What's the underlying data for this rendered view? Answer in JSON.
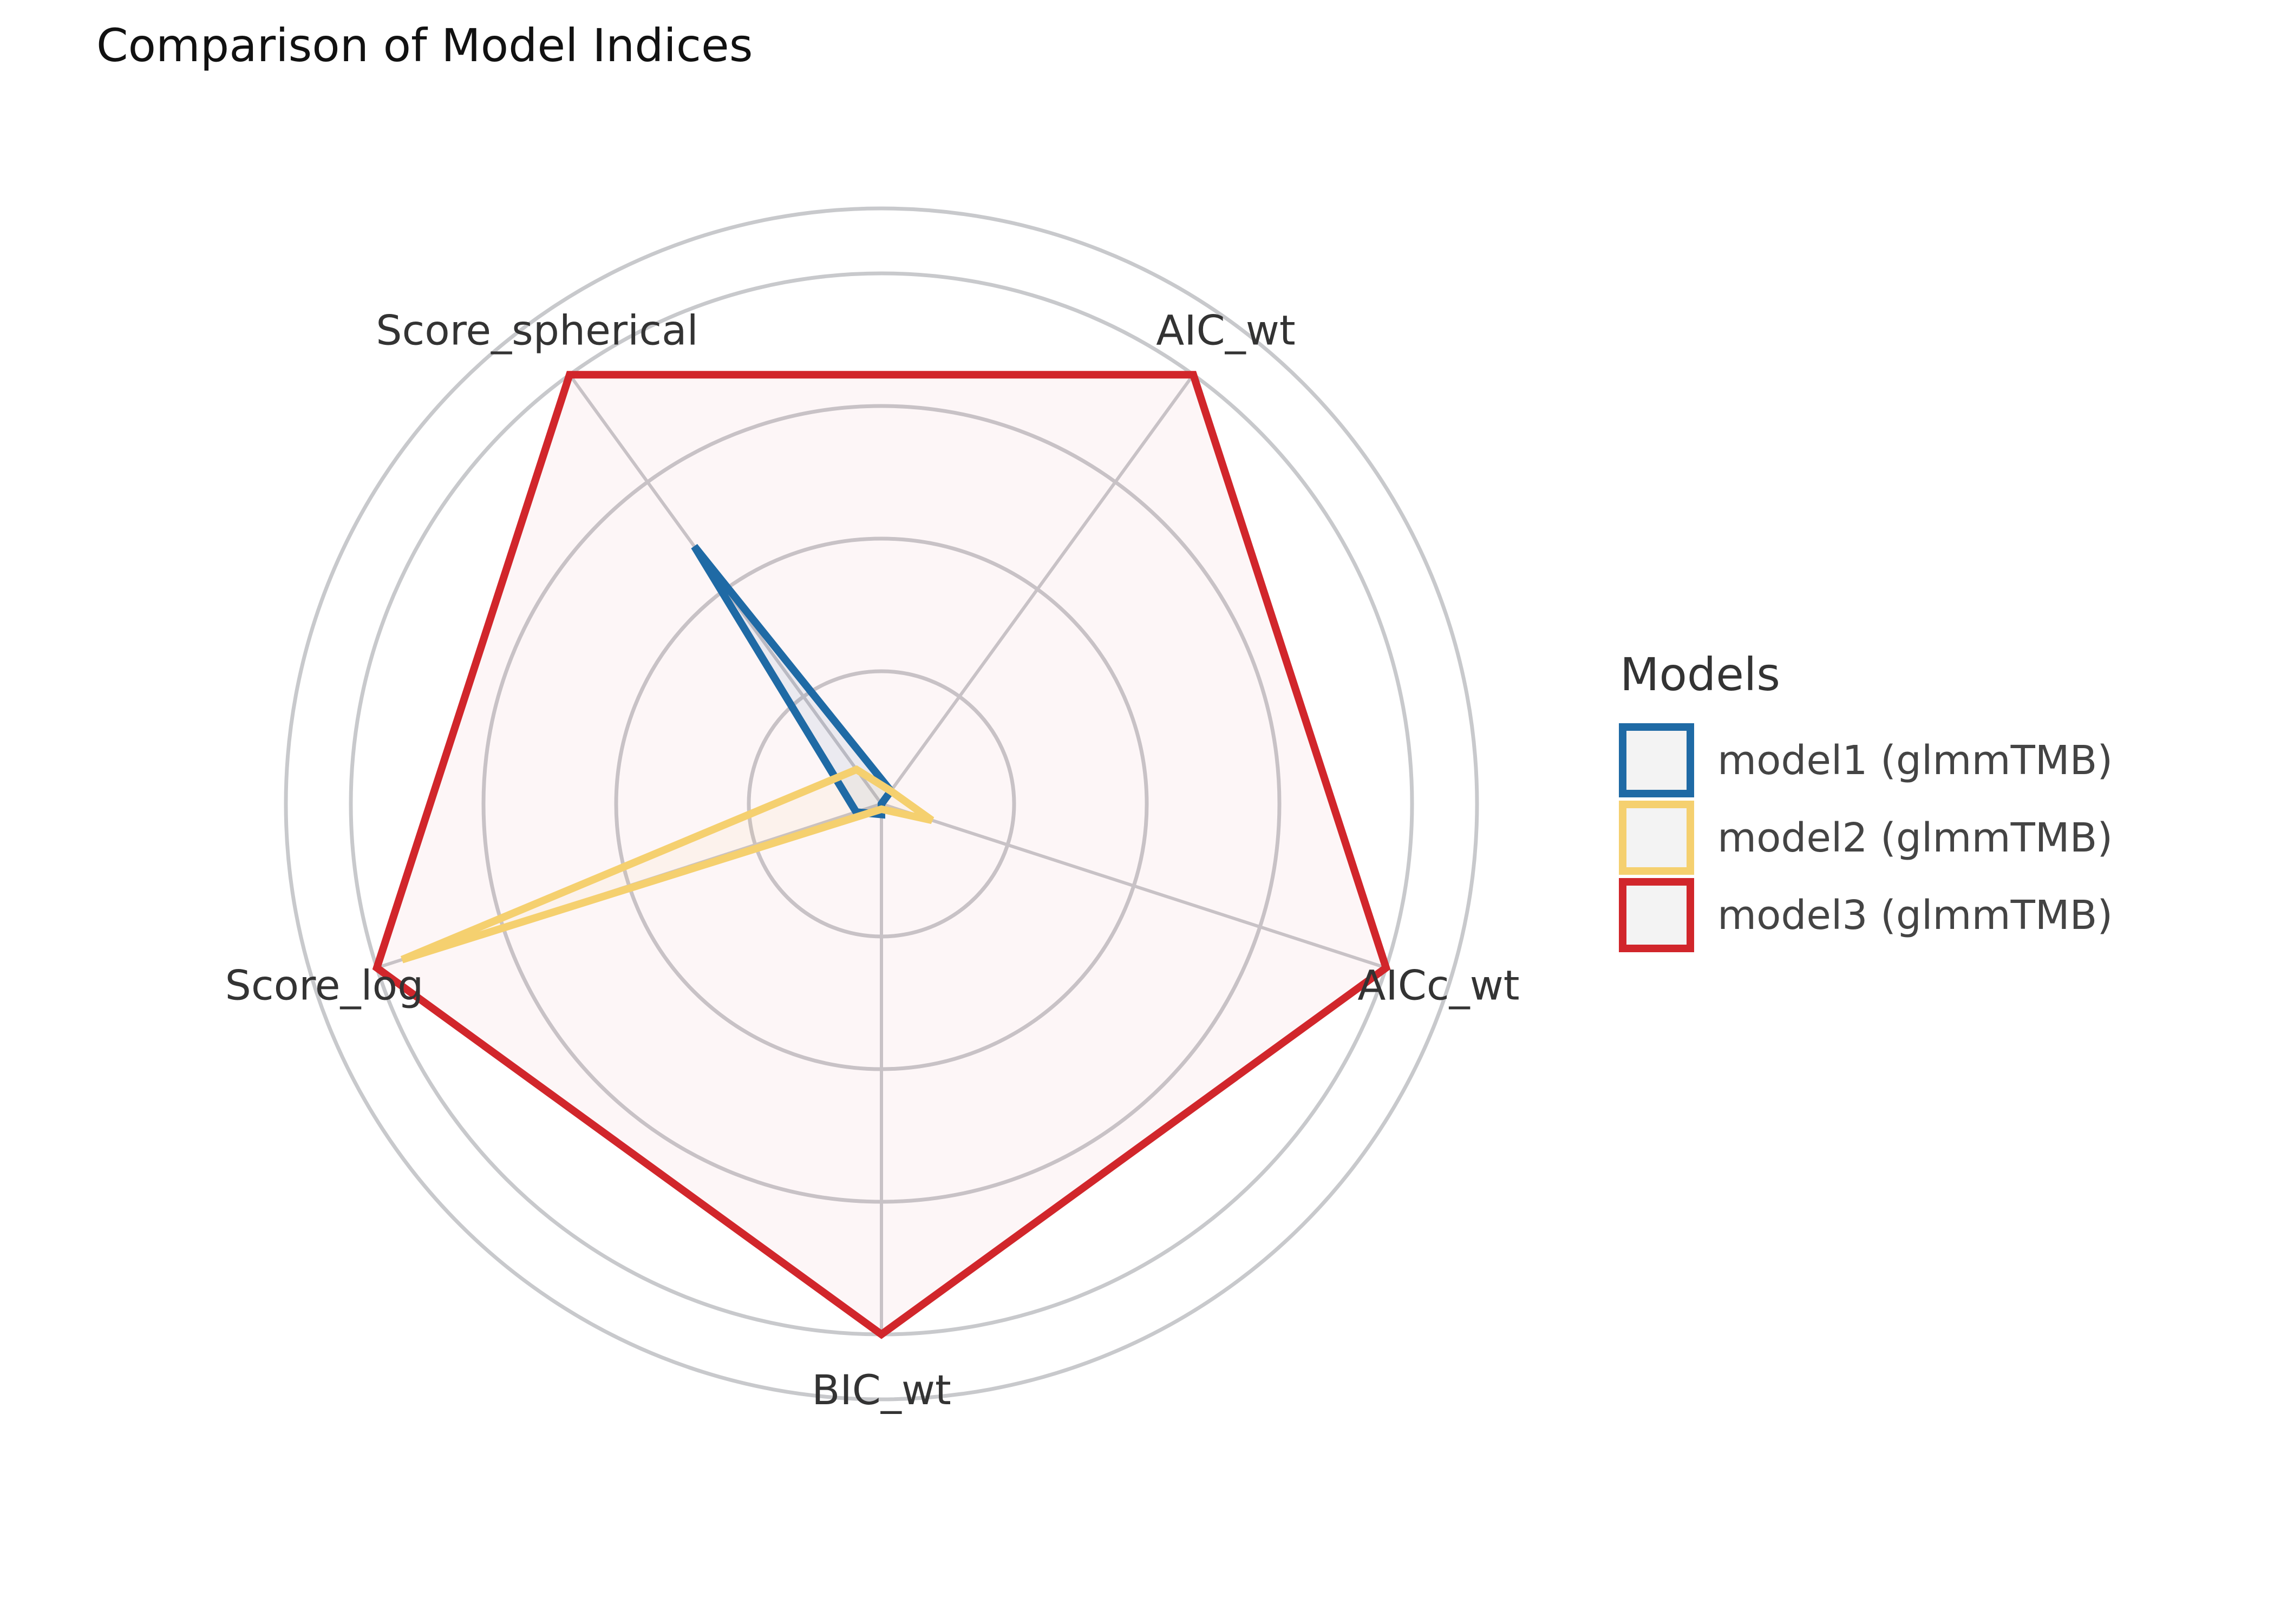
{
  "chart_data": {
    "type": "radar",
    "title": "Comparison of Model Indices",
    "axes": [
      "AIC_wt",
      "AICc_wt",
      "BIC_wt",
      "Score_log",
      "Score_spherical"
    ],
    "rlim": [
      0,
      1
    ],
    "grid": true,
    "legend": {
      "title": "Models",
      "placement": "right"
    },
    "series": [
      {
        "name": "model1 (glmmTMB)",
        "color": "#1f6aa5",
        "values": [
          0.03,
          0.0,
          0.02,
          0.05,
          0.6
        ]
      },
      {
        "name": "model2 (glmmTMB)",
        "color": "#f5d06f",
        "values": [
          0.03,
          0.1,
          0.01,
          0.95,
          0.08
        ]
      },
      {
        "name": "model3 (glmmTMB)",
        "color": "#d1262b",
        "values": [
          1.0,
          1.0,
          1.0,
          1.0,
          1.0
        ]
      }
    ],
    "colors": {
      "fill_tint": "#dbe8f7",
      "grid": "#c8c9cc",
      "legend_swatch_fill": "#f3f3f3"
    }
  }
}
